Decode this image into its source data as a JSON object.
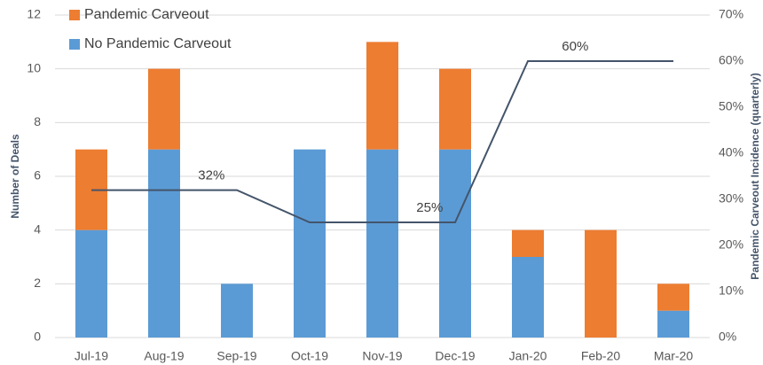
{
  "chart_data": {
    "type": "bar",
    "stacked": true,
    "categories": [
      "Jul-19",
      "Aug-19",
      "Sep-19",
      "Oct-19",
      "Nov-19",
      "Dec-19",
      "Jan-20",
      "Feb-20",
      "Mar-20"
    ],
    "series": [
      {
        "name": "No Pandemic Carveout",
        "type": "bar",
        "color": "#5b9bd5",
        "values": [
          4,
          7,
          2,
          7,
          7,
          7,
          3,
          0,
          1
        ]
      },
      {
        "name": "Pandemic Carveout",
        "type": "bar",
        "color": "#ed7d31",
        "values": [
          3,
          3,
          0,
          0,
          4,
          3,
          1,
          4,
          1
        ]
      },
      {
        "type": "line",
        "axis": "y2",
        "color": "#44546a",
        "values": [
          32,
          32,
          32,
          25,
          25,
          25,
          60,
          60,
          60
        ],
        "value_labels": [
          null,
          null,
          "32%",
          null,
          null,
          "25%",
          null,
          "60%",
          null
        ]
      }
    ],
    "y_label": "Number of Deals",
    "y2_label": "Pandemic Carveout Incidence (quarterly)",
    "ylim": [
      0,
      12
    ],
    "yticks": [
      0,
      2,
      4,
      6,
      8,
      10,
      12
    ],
    "y2lim": [
      0,
      70
    ],
    "y2ticks": [
      {
        "value": 0,
        "label": "0%"
      },
      {
        "value": 10,
        "label": "10%"
      },
      {
        "value": 20,
        "label": "20%"
      },
      {
        "value": 30,
        "label": "30%"
      },
      {
        "value": 40,
        "label": "40%"
      },
      {
        "value": 50,
        "label": "50%"
      },
      {
        "value": 60,
        "label": "60%"
      },
      {
        "value": 70,
        "label": "70%"
      }
    ],
    "grid": true,
    "legend": "upper left"
  }
}
